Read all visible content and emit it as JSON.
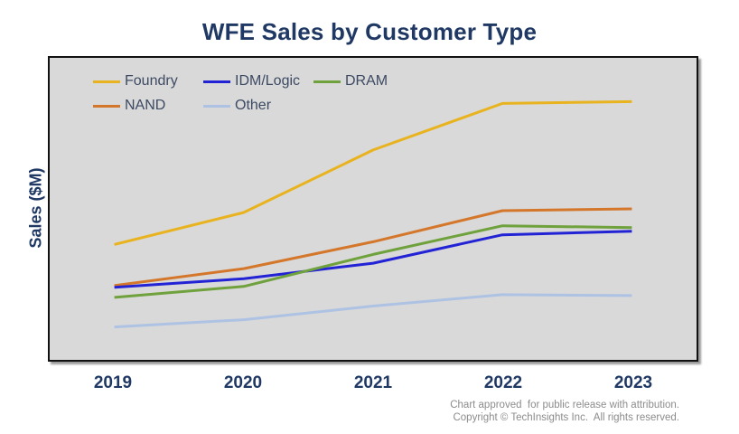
{
  "header": {
    "title": "WFE Sales by Customer Type"
  },
  "colors": {
    "title_text": "#1F3864",
    "axis_text": "#1F3864",
    "legend_text": "#3d4a63",
    "plot_background": "#D9D9D9",
    "plot_border": "#111111",
    "footer_text": "#8C8C8C"
  },
  "chart_data": {
    "type": "line",
    "title": "WFE Sales by Customer Type",
    "xlabel": "",
    "ylabel": "Sales ($M)",
    "categories": [
      "2019",
      "2020",
      "2021",
      "2022",
      "2023"
    ],
    "series": [
      {
        "name": "Foundry",
        "color": "#E8B31E",
        "values": [
          38.2,
          48.8,
          69.5,
          84.9,
          85.5
        ]
      },
      {
        "name": "IDM/Logic",
        "color": "#2323D6",
        "values": [
          24.0,
          26.9,
          32.0,
          41.4,
          42.6
        ]
      },
      {
        "name": "DRAM",
        "color": "#6FA13C",
        "values": [
          20.7,
          24.3,
          34.9,
          44.4,
          43.8
        ]
      },
      {
        "name": "NAND",
        "color": "#D4772B",
        "values": [
          24.6,
          30.2,
          39.1,
          49.4,
          50.0
        ]
      },
      {
        "name": "Other",
        "color": "#AEC3E3",
        "values": [
          10.9,
          13.3,
          17.8,
          21.6,
          21.3
        ]
      }
    ],
    "value_units": "relative (y-axis shows no tick labels; values are percent of plot height above baseline)",
    "ylim": [
      0,
      100
    ],
    "grid": false,
    "y_tick_labels_visible": false,
    "legend_position": "inside top-left, two rows: [Foundry, IDM/Logic, DRAM] / [NAND, Other]"
  },
  "footer": {
    "line1": "Chart approved  for public release with attribution.",
    "line2": "Copyright © TechInsights Inc.  All rights reserved."
  }
}
